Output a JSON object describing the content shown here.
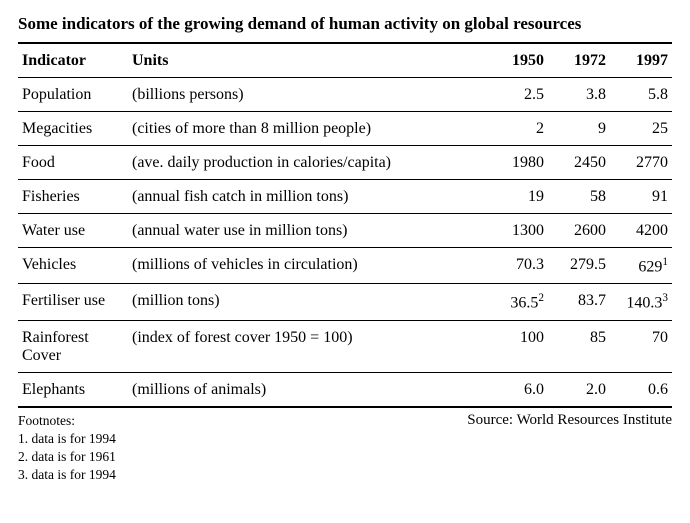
{
  "title": "Some indicators of the growing demand of human activity on global resources",
  "columns": {
    "indicator": "Indicator",
    "units": "Units",
    "y1950": "1950",
    "y1972": "1972",
    "y1997": "1997"
  },
  "rows": [
    {
      "indicator": "Population",
      "units": "(billions persons)",
      "y1950": "2.5",
      "y1972": "3.8",
      "y1997": "5.8",
      "sup1997": ""
    },
    {
      "indicator": "Megacities",
      "units": "(cities of more than 8 million people)",
      "y1950": "2",
      "y1972": "9",
      "y1997": "25",
      "sup1997": ""
    },
    {
      "indicator": "Food",
      "units": "(ave. daily production in calories/capita)",
      "y1950": "1980",
      "y1972": "2450",
      "y1997": "2770",
      "sup1997": ""
    },
    {
      "indicator": "Fisheries",
      "units": "(annual fish catch in million tons)",
      "y1950": "19",
      "y1972": "58",
      "y1997": "91",
      "sup1997": ""
    },
    {
      "indicator": "Water use",
      "units": "(annual water use in million tons)",
      "y1950": "1300",
      "y1972": "2600",
      "y1997": "4200",
      "sup1997": ""
    },
    {
      "indicator": "Vehicles",
      "units": "(millions of vehicles in circulation)",
      "y1950": "70.3",
      "y1972": "279.5",
      "y1997": "629",
      "sup1997": "1"
    },
    {
      "indicator": "Fertiliser use",
      "units": "(million tons)",
      "y1950": "36.5",
      "sup1950": "2",
      "y1972": "83.7",
      "y1997": "140.3",
      "sup1997": "3"
    },
    {
      "indicator": "Rainforest Cover",
      "units": "(index of forest cover 1950 = 100)",
      "y1950": "100",
      "y1972": "85",
      "y1997": "70",
      "sup1997": ""
    },
    {
      "indicator": "Elephants",
      "units": "(millions of animals)",
      "y1950": "6.0",
      "y1972": "2.0",
      "y1997": "0.6",
      "sup1997": ""
    }
  ],
  "footnotes": {
    "header": "Footnotes:",
    "items": [
      "1. data is for 1994",
      "2. data is for 1961",
      "3. data is for 1994"
    ]
  },
  "source": "Source: World Resources Institute"
}
